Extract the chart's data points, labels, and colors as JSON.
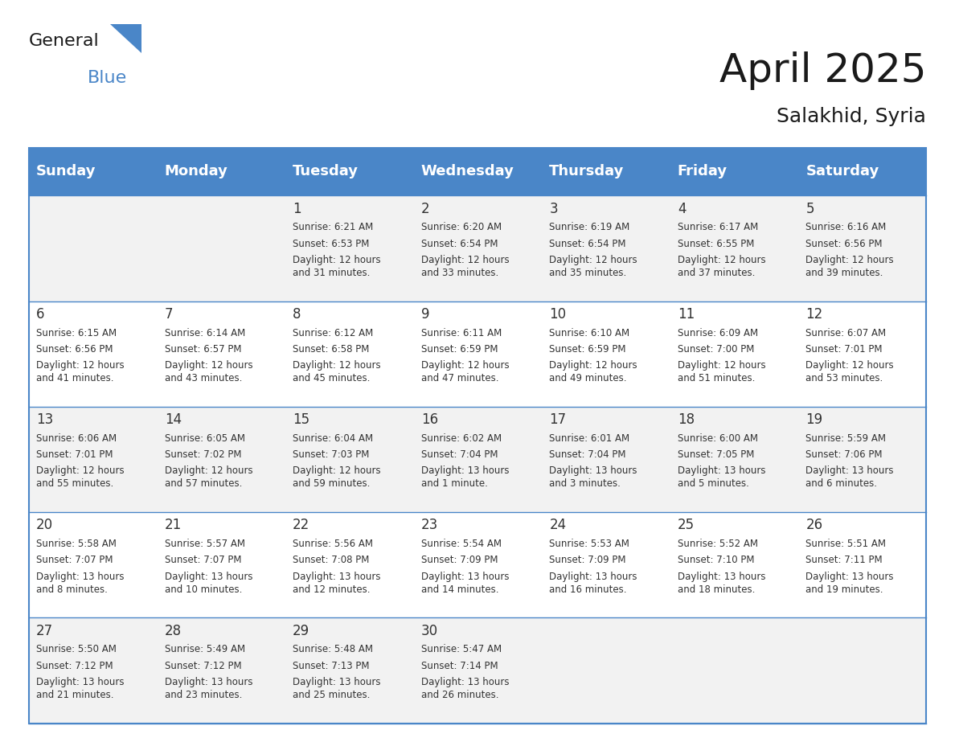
{
  "title": "April 2025",
  "subtitle": "Salakhid, Syria",
  "header_bg_color": "#4A86C8",
  "header_text_color": "#FFFFFF",
  "day_names": [
    "Sunday",
    "Monday",
    "Tuesday",
    "Wednesday",
    "Thursday",
    "Friday",
    "Saturday"
  ],
  "row_bg_even": "#F2F2F2",
  "row_bg_odd": "#FFFFFF",
  "cell_text_color": "#333333",
  "grid_line_color": "#4A86C8",
  "title_color": "#1a1a1a",
  "subtitle_color": "#1a1a1a",
  "calendar": [
    [
      {
        "day": "",
        "sunrise": "",
        "sunset": "",
        "daylight": ""
      },
      {
        "day": "",
        "sunrise": "",
        "sunset": "",
        "daylight": ""
      },
      {
        "day": "1",
        "sunrise": "Sunrise: 6:21 AM",
        "sunset": "Sunset: 6:53 PM",
        "daylight": "Daylight: 12 hours\nand 31 minutes."
      },
      {
        "day": "2",
        "sunrise": "Sunrise: 6:20 AM",
        "sunset": "Sunset: 6:54 PM",
        "daylight": "Daylight: 12 hours\nand 33 minutes."
      },
      {
        "day": "3",
        "sunrise": "Sunrise: 6:19 AM",
        "sunset": "Sunset: 6:54 PM",
        "daylight": "Daylight: 12 hours\nand 35 minutes."
      },
      {
        "day": "4",
        "sunrise": "Sunrise: 6:17 AM",
        "sunset": "Sunset: 6:55 PM",
        "daylight": "Daylight: 12 hours\nand 37 minutes."
      },
      {
        "day": "5",
        "sunrise": "Sunrise: 6:16 AM",
        "sunset": "Sunset: 6:56 PM",
        "daylight": "Daylight: 12 hours\nand 39 minutes."
      }
    ],
    [
      {
        "day": "6",
        "sunrise": "Sunrise: 6:15 AM",
        "sunset": "Sunset: 6:56 PM",
        "daylight": "Daylight: 12 hours\nand 41 minutes."
      },
      {
        "day": "7",
        "sunrise": "Sunrise: 6:14 AM",
        "sunset": "Sunset: 6:57 PM",
        "daylight": "Daylight: 12 hours\nand 43 minutes."
      },
      {
        "day": "8",
        "sunrise": "Sunrise: 6:12 AM",
        "sunset": "Sunset: 6:58 PM",
        "daylight": "Daylight: 12 hours\nand 45 minutes."
      },
      {
        "day": "9",
        "sunrise": "Sunrise: 6:11 AM",
        "sunset": "Sunset: 6:59 PM",
        "daylight": "Daylight: 12 hours\nand 47 minutes."
      },
      {
        "day": "10",
        "sunrise": "Sunrise: 6:10 AM",
        "sunset": "Sunset: 6:59 PM",
        "daylight": "Daylight: 12 hours\nand 49 minutes."
      },
      {
        "day": "11",
        "sunrise": "Sunrise: 6:09 AM",
        "sunset": "Sunset: 7:00 PM",
        "daylight": "Daylight: 12 hours\nand 51 minutes."
      },
      {
        "day": "12",
        "sunrise": "Sunrise: 6:07 AM",
        "sunset": "Sunset: 7:01 PM",
        "daylight": "Daylight: 12 hours\nand 53 minutes."
      }
    ],
    [
      {
        "day": "13",
        "sunrise": "Sunrise: 6:06 AM",
        "sunset": "Sunset: 7:01 PM",
        "daylight": "Daylight: 12 hours\nand 55 minutes."
      },
      {
        "day": "14",
        "sunrise": "Sunrise: 6:05 AM",
        "sunset": "Sunset: 7:02 PM",
        "daylight": "Daylight: 12 hours\nand 57 minutes."
      },
      {
        "day": "15",
        "sunrise": "Sunrise: 6:04 AM",
        "sunset": "Sunset: 7:03 PM",
        "daylight": "Daylight: 12 hours\nand 59 minutes."
      },
      {
        "day": "16",
        "sunrise": "Sunrise: 6:02 AM",
        "sunset": "Sunset: 7:04 PM",
        "daylight": "Daylight: 13 hours\nand 1 minute."
      },
      {
        "day": "17",
        "sunrise": "Sunrise: 6:01 AM",
        "sunset": "Sunset: 7:04 PM",
        "daylight": "Daylight: 13 hours\nand 3 minutes."
      },
      {
        "day": "18",
        "sunrise": "Sunrise: 6:00 AM",
        "sunset": "Sunset: 7:05 PM",
        "daylight": "Daylight: 13 hours\nand 5 minutes."
      },
      {
        "day": "19",
        "sunrise": "Sunrise: 5:59 AM",
        "sunset": "Sunset: 7:06 PM",
        "daylight": "Daylight: 13 hours\nand 6 minutes."
      }
    ],
    [
      {
        "day": "20",
        "sunrise": "Sunrise: 5:58 AM",
        "sunset": "Sunset: 7:07 PM",
        "daylight": "Daylight: 13 hours\nand 8 minutes."
      },
      {
        "day": "21",
        "sunrise": "Sunrise: 5:57 AM",
        "sunset": "Sunset: 7:07 PM",
        "daylight": "Daylight: 13 hours\nand 10 minutes."
      },
      {
        "day": "22",
        "sunrise": "Sunrise: 5:56 AM",
        "sunset": "Sunset: 7:08 PM",
        "daylight": "Daylight: 13 hours\nand 12 minutes."
      },
      {
        "day": "23",
        "sunrise": "Sunrise: 5:54 AM",
        "sunset": "Sunset: 7:09 PM",
        "daylight": "Daylight: 13 hours\nand 14 minutes."
      },
      {
        "day": "24",
        "sunrise": "Sunrise: 5:53 AM",
        "sunset": "Sunset: 7:09 PM",
        "daylight": "Daylight: 13 hours\nand 16 minutes."
      },
      {
        "day": "25",
        "sunrise": "Sunrise: 5:52 AM",
        "sunset": "Sunset: 7:10 PM",
        "daylight": "Daylight: 13 hours\nand 18 minutes."
      },
      {
        "day": "26",
        "sunrise": "Sunrise: 5:51 AM",
        "sunset": "Sunset: 7:11 PM",
        "daylight": "Daylight: 13 hours\nand 19 minutes."
      }
    ],
    [
      {
        "day": "27",
        "sunrise": "Sunrise: 5:50 AM",
        "sunset": "Sunset: 7:12 PM",
        "daylight": "Daylight: 13 hours\nand 21 minutes."
      },
      {
        "day": "28",
        "sunrise": "Sunrise: 5:49 AM",
        "sunset": "Sunset: 7:12 PM",
        "daylight": "Daylight: 13 hours\nand 23 minutes."
      },
      {
        "day": "29",
        "sunrise": "Sunrise: 5:48 AM",
        "sunset": "Sunset: 7:13 PM",
        "daylight": "Daylight: 13 hours\nand 25 minutes."
      },
      {
        "day": "30",
        "sunrise": "Sunrise: 5:47 AM",
        "sunset": "Sunset: 7:14 PM",
        "daylight": "Daylight: 13 hours\nand 26 minutes."
      },
      {
        "day": "",
        "sunrise": "",
        "sunset": "",
        "daylight": ""
      },
      {
        "day": "",
        "sunrise": "",
        "sunset": "",
        "daylight": ""
      },
      {
        "day": "",
        "sunrise": "",
        "sunset": "",
        "daylight": ""
      }
    ]
  ]
}
